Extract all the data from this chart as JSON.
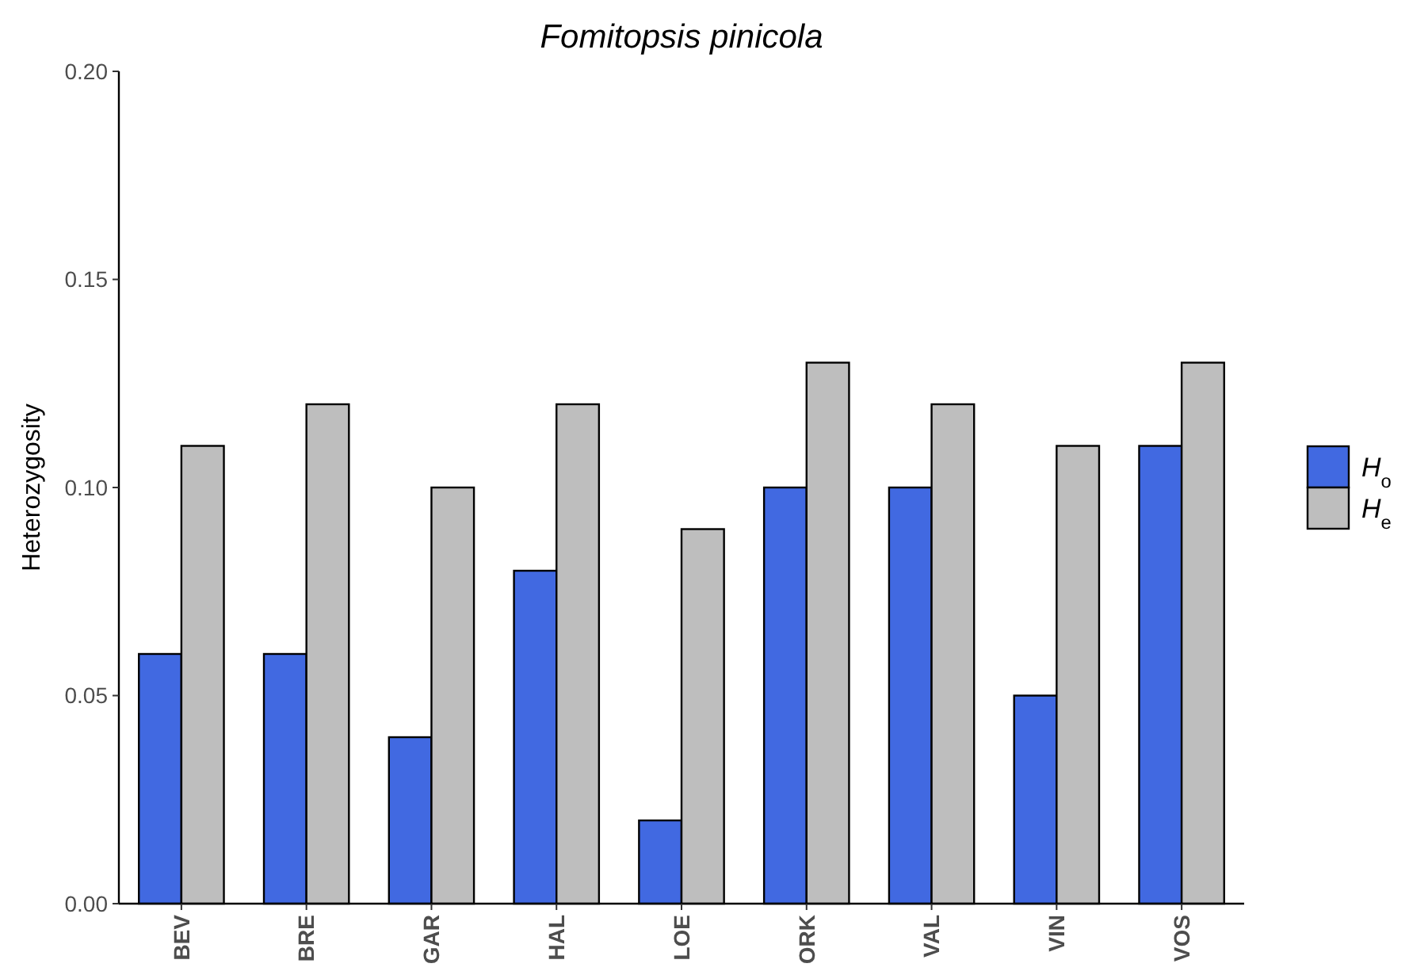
{
  "chart_data": {
    "type": "bar",
    "title": "Fomitopsis pinicola",
    "ylabel": "Heterozygosity",
    "categories": [
      "BEV",
      "BRE",
      "GAR",
      "HAL",
      "LOE",
      "ORK",
      "VAL",
      "VIN",
      "VOS"
    ],
    "series": [
      {
        "name": "H$_{o}$",
        "color": "#4169e1",
        "values": [
          0.06,
          0.06,
          0.04,
          0.08,
          0.02,
          0.1,
          0.1,
          0.05,
          0.11
        ]
      },
      {
        "name": "H$_{e}$",
        "color": "#bebebe",
        "values": [
          0.11,
          0.12,
          0.1,
          0.12,
          0.09,
          0.13,
          0.12,
          0.11,
          0.13
        ]
      }
    ],
    "ylim": [
      0,
      0.2
    ],
    "yticks": [
      {
        "value": 0,
        "label": "0.00"
      },
      {
        "value": 0.05,
        "label": "0.05"
      },
      {
        "value": 0.1,
        "label": "0.10"
      },
      {
        "value": 0.15,
        "label": "0.15"
      },
      {
        "value": 0.2,
        "label": "0.20"
      }
    ],
    "grid": false,
    "legend": "right"
  }
}
